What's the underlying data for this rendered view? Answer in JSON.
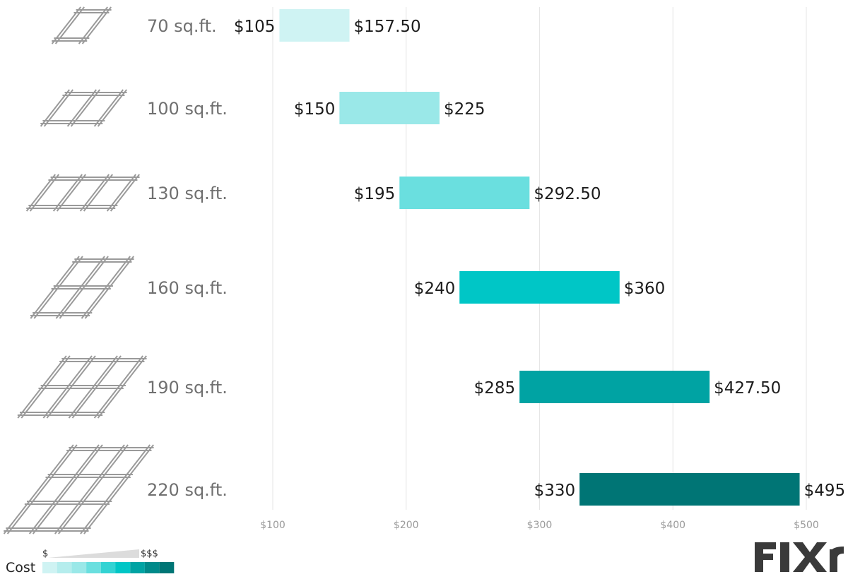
{
  "chart_data": {
    "type": "bar",
    "orientation": "horizontal",
    "style": "floating range bars",
    "categories": [
      "70 sq.ft.",
      "100 sq.ft.",
      "130 sq.ft.",
      "160 sq.ft.",
      "190 sq.ft.",
      "220 sq.ft."
    ],
    "ranges": [
      {
        "low": 105,
        "high": 157.5,
        "low_label": "$105",
        "high_label": "$157.50",
        "color": "#cff3f3"
      },
      {
        "low": 150,
        "high": 225,
        "low_label": "$150",
        "high_label": "$225",
        "color": "#9ae8e8"
      },
      {
        "low": 195,
        "high": 292.5,
        "low_label": "$195",
        "high_label": "$292.50",
        "color": "#6adfdf"
      },
      {
        "low": 240,
        "high": 360,
        "low_label": "$240",
        "high_label": "$360",
        "color": "#00c6c6"
      },
      {
        "low": 285,
        "high": 427.5,
        "low_label": "$285",
        "high_label": "$427.50",
        "color": "#00a3a3"
      },
      {
        "low": 330,
        "high": 495,
        "low_label": "$330",
        "high_label": "$495",
        "color": "#007575"
      }
    ],
    "grid_counts": [
      1,
      2,
      3,
      4,
      6,
      9
    ],
    "xlim": [
      100,
      500
    ],
    "xticks": [
      100,
      200,
      300,
      400,
      500
    ],
    "xtick_labels": [
      "$100",
      "$200",
      "$300",
      "$400",
      "$500"
    ],
    "grid": true,
    "legend": {
      "title": "Cost",
      "low_label": "$",
      "high_label": "$$$",
      "colors": [
        "#cff3f3",
        "#b5eded",
        "#9ae8e8",
        "#6adfdf",
        "#33d3d3",
        "#00c6c6",
        "#00a3a3",
        "#008a8a",
        "#007575"
      ]
    }
  },
  "brand": {
    "logo": "FIXR",
    "left": "FIX",
    "right": "r",
    "color": "#3a3a3a"
  }
}
